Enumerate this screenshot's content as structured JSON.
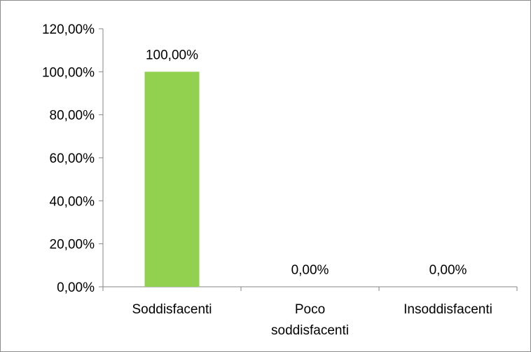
{
  "chart_data": {
    "type": "bar",
    "title": "",
    "xlabel": "",
    "ylabel": "",
    "categories": [
      [
        "Soddisfacenti"
      ],
      [
        "Poco",
        "soddisfacenti"
      ],
      [
        "Insoddisfacenti"
      ]
    ],
    "values": [
      100,
      0,
      0
    ],
    "data_labels": [
      "100,00%",
      "0,00%",
      "0,00%"
    ],
    "ylim": [
      0,
      120
    ],
    "yticks": [
      0,
      20,
      40,
      60,
      80,
      100,
      120
    ],
    "ytick_labels": [
      "0,00%",
      "20,00%",
      "40,00%",
      "60,00%",
      "80,00%",
      "100,00%",
      "120,00%"
    ],
    "grid": false,
    "legend": "none",
    "bar_color": "#92d050",
    "axis_color": "#868686"
  }
}
